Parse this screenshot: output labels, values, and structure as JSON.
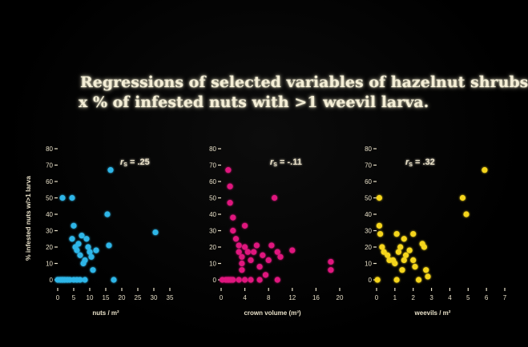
{
  "title": {
    "line1": "Regressions of selected variables of hazelnut shrubs",
    "line2": "x  % of infested nuts with >1 weevil larva."
  },
  "chart_data": [
    {
      "type": "scatter",
      "xlabel": "nuts / m²",
      "ylabel": "% infested nuts w/>1 larva",
      "xlim": [
        0,
        35
      ],
      "ylim": [
        0,
        80
      ],
      "xticks": [
        0,
        5,
        10,
        15,
        20,
        25,
        30,
        35
      ],
      "yticks": [
        0,
        10,
        20,
        30,
        40,
        50,
        60,
        70,
        80
      ],
      "annotation_symbol": "r",
      "annotation_sub": "S",
      "annotation_value": " = .25",
      "color": "#2fb6e8",
      "points": [
        [
          0,
          0
        ],
        [
          0.8,
          0
        ],
        [
          1.5,
          0
        ],
        [
          2.2,
          0
        ],
        [
          3,
          0
        ],
        [
          3.8,
          0
        ],
        [
          5,
          0
        ],
        [
          6,
          0
        ],
        [
          7,
          0
        ],
        [
          8.5,
          0
        ],
        [
          1.5,
          50
        ],
        [
          4.5,
          50
        ],
        [
          5,
          33
        ],
        [
          4.5,
          25
        ],
        [
          5.5,
          20
        ],
        [
          6,
          18
        ],
        [
          6.5,
          22
        ],
        [
          7,
          15
        ],
        [
          7.5,
          27
        ],
        [
          8,
          10
        ],
        [
          8.5,
          12
        ],
        [
          9,
          25
        ],
        [
          9.5,
          20
        ],
        [
          10,
          17
        ],
        [
          10.5,
          14
        ],
        [
          11,
          6
        ],
        [
          12,
          18
        ],
        [
          15.5,
          40
        ],
        [
          16,
          21
        ],
        [
          16.5,
          67
        ],
        [
          17.5,
          0
        ],
        [
          30.5,
          29
        ]
      ]
    },
    {
      "type": "scatter",
      "xlabel": "crown volume (m³)",
      "ylabel": "",
      "xlim": [
        0,
        20
      ],
      "ylim": [
        0,
        80
      ],
      "xticks": [
        0,
        4,
        8,
        12,
        16,
        20
      ],
      "yticks": [
        0,
        10,
        20,
        30,
        40,
        50,
        60,
        70,
        80
      ],
      "annotation_symbol": "r",
      "annotation_sub": "S",
      "annotation_value": " = -.11",
      "color": "#e0197e",
      "points": [
        [
          0.2,
          0
        ],
        [
          0.8,
          0
        ],
        [
          1.2,
          0
        ],
        [
          1.6,
          0
        ],
        [
          2,
          0
        ],
        [
          3,
          0
        ],
        [
          4,
          0
        ],
        [
          5,
          0
        ],
        [
          6.5,
          0
        ],
        [
          9.5,
          0
        ],
        [
          1.2,
          67
        ],
        [
          1.5,
          57
        ],
        [
          1.5,
          47
        ],
        [
          2,
          38
        ],
        [
          2,
          30
        ],
        [
          2.5,
          25
        ],
        [
          3,
          21
        ],
        [
          3,
          17
        ],
        [
          3.5,
          14
        ],
        [
          3.5,
          10
        ],
        [
          3.5,
          6
        ],
        [
          4,
          33
        ],
        [
          4,
          20
        ],
        [
          4.5,
          17
        ],
        [
          5,
          12
        ],
        [
          5.5,
          17
        ],
        [
          6,
          21
        ],
        [
          6.5,
          8
        ],
        [
          7,
          15
        ],
        [
          7.5,
          3
        ],
        [
          8,
          12
        ],
        [
          8.5,
          21
        ],
        [
          9,
          50
        ],
        [
          9.5,
          17
        ],
        [
          10,
          14
        ],
        [
          12,
          18
        ],
        [
          18.5,
          11
        ],
        [
          18.5,
          6
        ]
      ]
    },
    {
      "type": "scatter",
      "xlabel": "weevils / m²",
      "ylabel": "",
      "xlim": [
        0,
        7
      ],
      "ylim": [
        0,
        80
      ],
      "xticks": [
        0,
        1,
        2,
        3,
        4,
        5,
        6,
        7
      ],
      "yticks": [
        0,
        10,
        20,
        30,
        40,
        50,
        60,
        70,
        80
      ],
      "annotation_symbol": "r",
      "annotation_sub": "S",
      "annotation_value": " = .32",
      "color": "#f5d51a",
      "points": [
        [
          0.05,
          0
        ],
        [
          0.15,
          50
        ],
        [
          0.15,
          33
        ],
        [
          0.2,
          28
        ],
        [
          0.3,
          20
        ],
        [
          0.4,
          17
        ],
        [
          0.6,
          15
        ],
        [
          0.7,
          12
        ],
        [
          0.9,
          12
        ],
        [
          1,
          10
        ],
        [
          1.1,
          28
        ],
        [
          1.2,
          17
        ],
        [
          1.3,
          20
        ],
        [
          1.4,
          6
        ],
        [
          1.5,
          25
        ],
        [
          1.5,
          12
        ],
        [
          1.6,
          15
        ],
        [
          1.8,
          18
        ],
        [
          2,
          28
        ],
        [
          2,
          12
        ],
        [
          2.1,
          8
        ],
        [
          2.3,
          0
        ],
        [
          2.5,
          22
        ],
        [
          2.6,
          20
        ],
        [
          2.7,
          6
        ],
        [
          2.8,
          2
        ],
        [
          1.1,
          0
        ],
        [
          4.7,
          50
        ],
        [
          4.9,
          40
        ],
        [
          5.9,
          67
        ]
      ]
    }
  ]
}
